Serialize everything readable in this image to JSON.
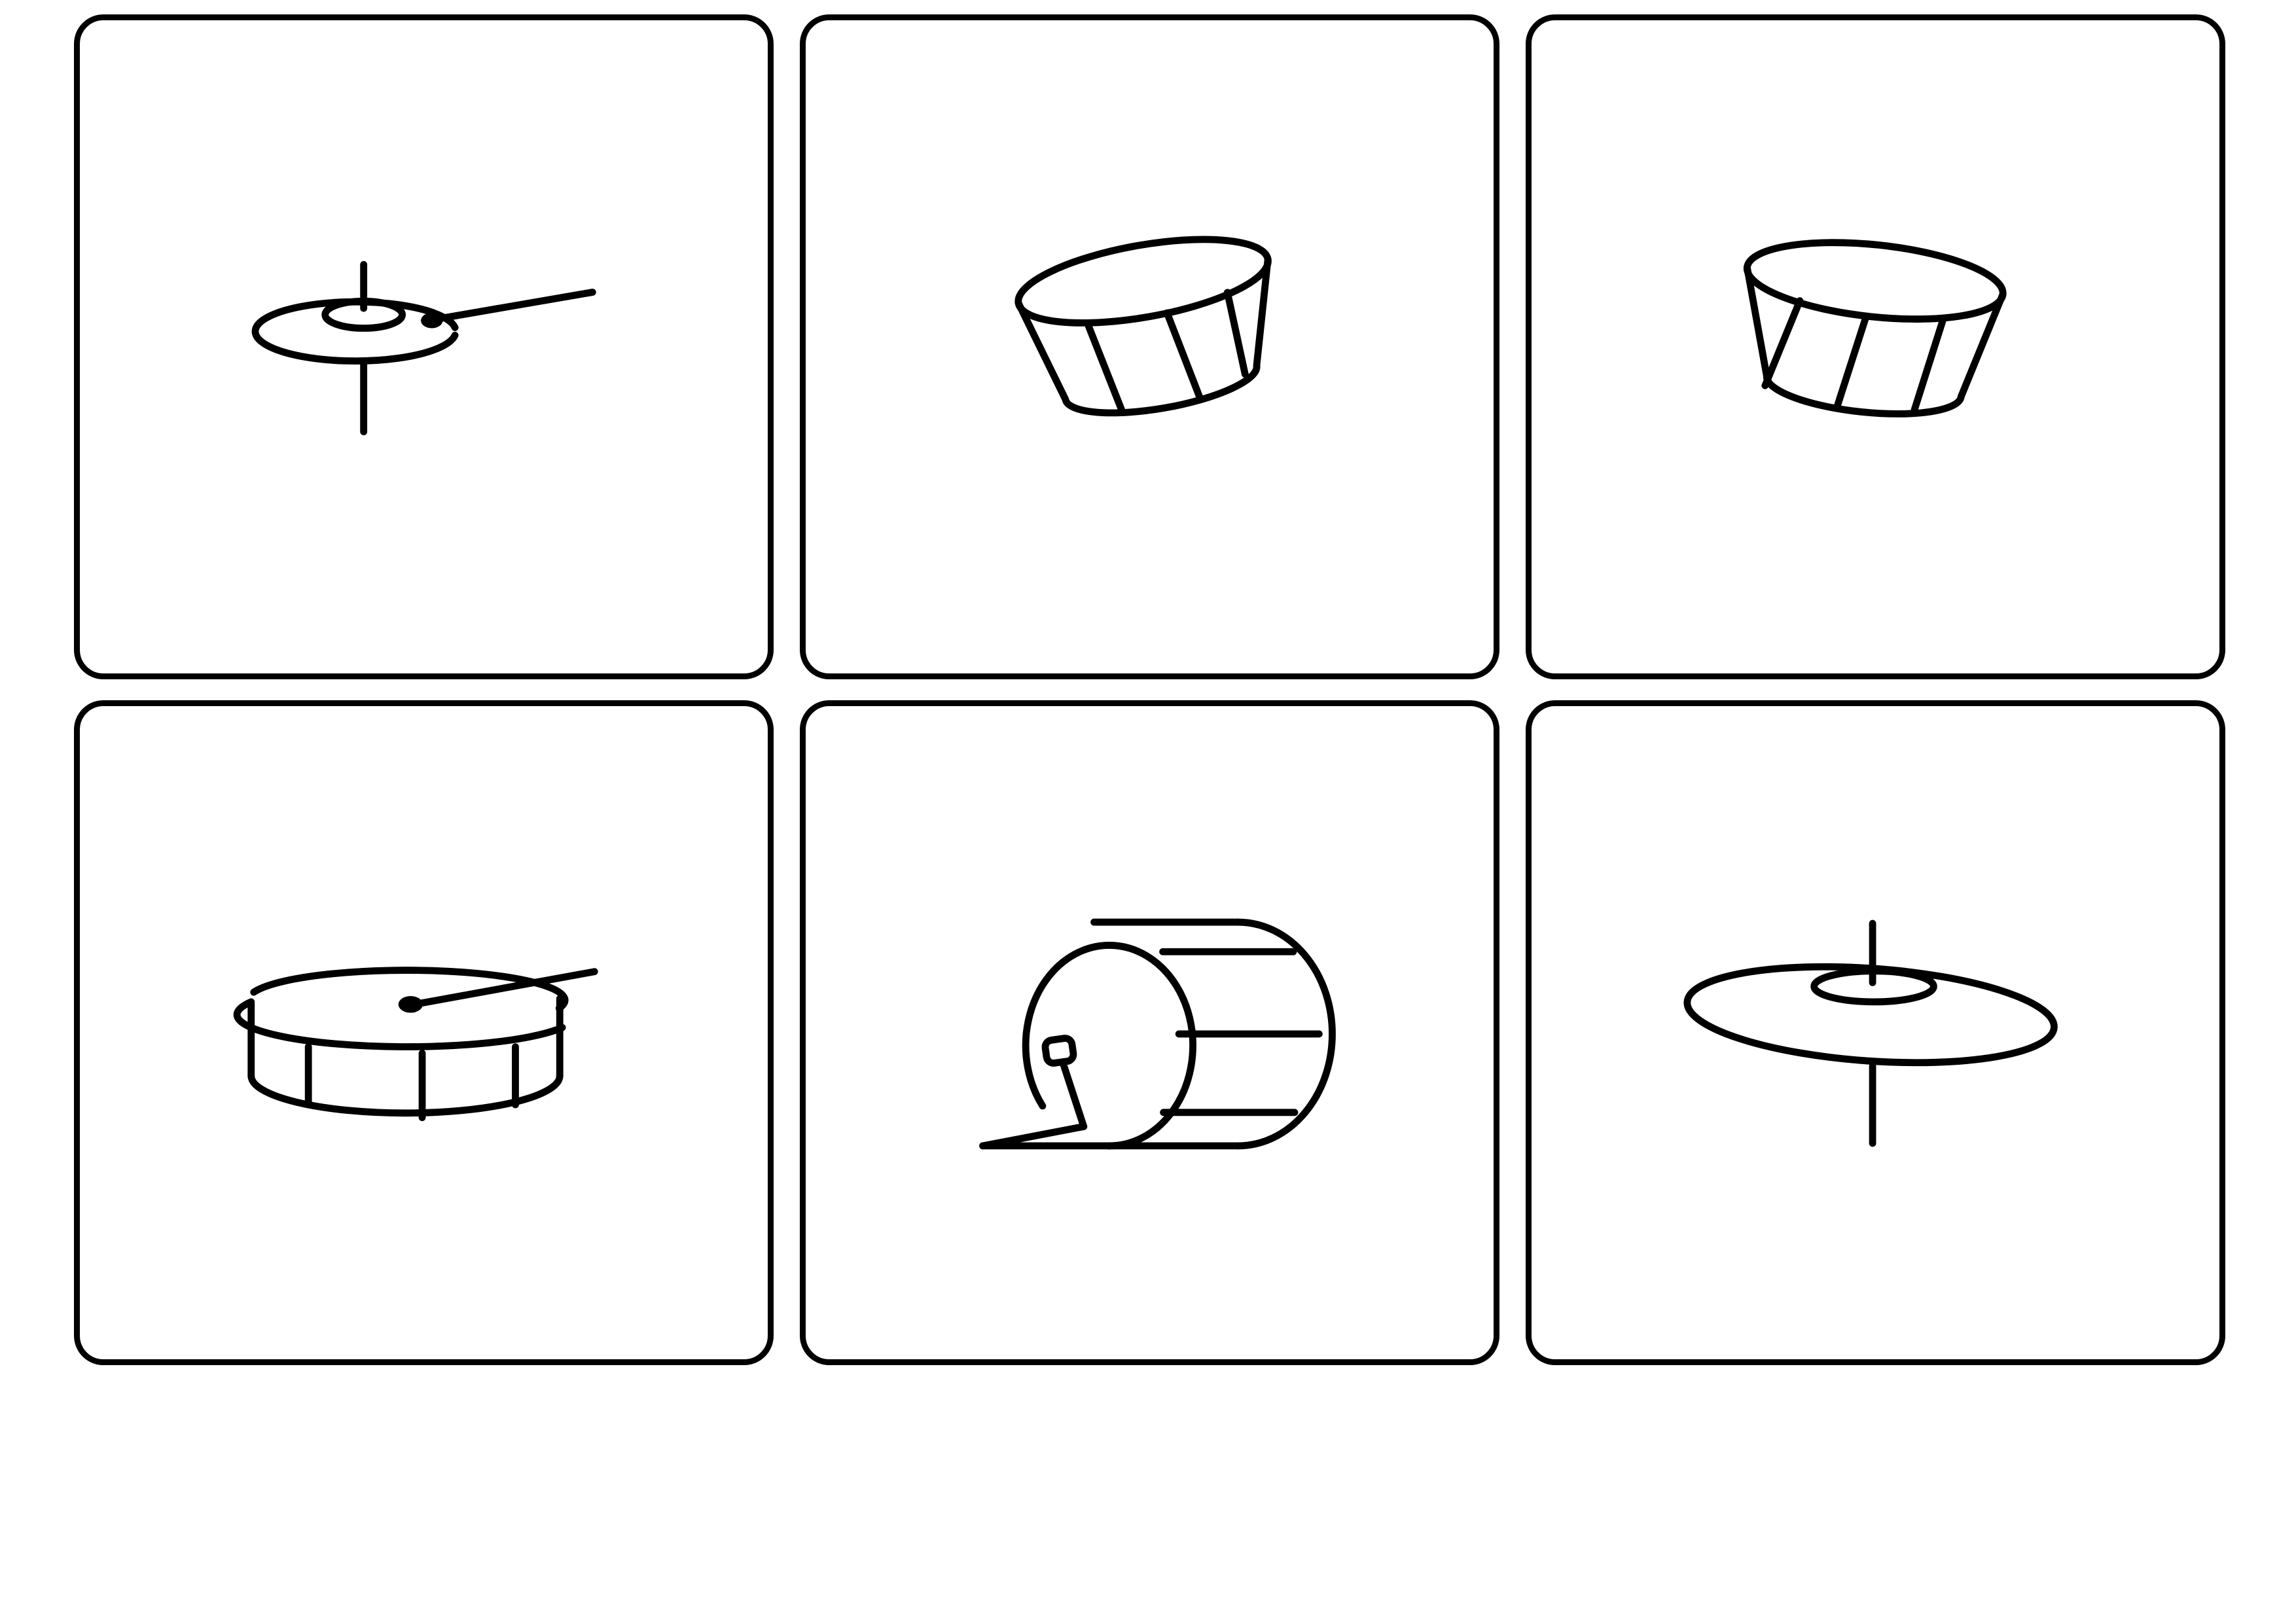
{
  "sheet": {
    "background": "#ffffff",
    "border_color": "#000000",
    "cards": [
      {
        "icon": "hi-hat-cymbal-icon"
      },
      {
        "icon": "tom-drum-icon"
      },
      {
        "icon": "tom-drum-icon"
      },
      {
        "icon": "snare-drum-icon"
      },
      {
        "icon": "bass-drum-icon"
      },
      {
        "icon": "crash-cymbal-icon"
      }
    ]
  }
}
